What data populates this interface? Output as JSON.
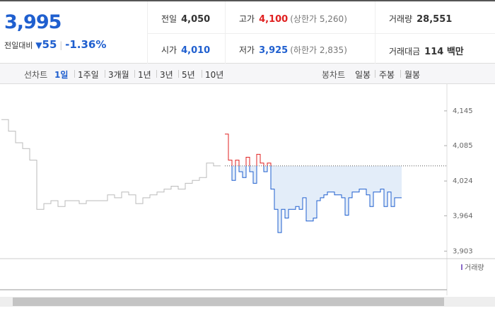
{
  "header": {
    "price": "3,995",
    "change_label": "전일대비",
    "change": "55",
    "change_pct": "-1.36%"
  },
  "stats": [
    {
      "label": "전일",
      "value": "4,050"
    },
    {
      "label": "고가",
      "value": "4,100",
      "extra": "(상한가 5,260)"
    },
    {
      "label": "거래량",
      "value": "28,551"
    },
    {
      "label": "시가",
      "value": "4,010"
    },
    {
      "label": "저가",
      "value": "3,925",
      "extra": "(하한가 2,835)"
    },
    {
      "label": "거래대금",
      "value": "114 백만"
    }
  ],
  "tabs": {
    "line_label": "선차트",
    "line_options": [
      "1일",
      "1주일",
      "3개월",
      "1년",
      "3년",
      "5년",
      "10년"
    ],
    "candle_label": "봉차트",
    "candle_options": [
      "일봉",
      "주봉",
      "월봉"
    ]
  },
  "chart": {
    "type": "line",
    "ylim": [
      3890,
      4190
    ],
    "yticks": [
      {
        "value": 4145,
        "label": "4,145"
      },
      {
        "value": 4085,
        "label": "4,085"
      },
      {
        "value": 4024,
        "label": "4,024"
      },
      {
        "value": 3964,
        "label": "3,964"
      },
      {
        "value": 3903,
        "label": "3,903"
      }
    ],
    "reference": 4050,
    "volume_legend": "거래량",
    "series": [
      {
        "color": "#bbbbbb",
        "values": [
          4130,
          4110,
          4090,
          4080,
          4060,
          3975,
          3985,
          3990,
          3980,
          3990,
          3990,
          3985,
          3990,
          3990,
          3990,
          4000,
          3995,
          4005,
          4000,
          3985,
          3995,
          4000,
          4005,
          4010,
          4015,
          4010,
          4020,
          4025,
          4030,
          4055,
          4050,
          4050
        ]
      },
      {
        "color": "#1f5fcf",
        "up_color": "#e02020",
        "values": [
          4105,
          4060,
          4025,
          4060,
          4040,
          4030,
          4065,
          4040,
          4020,
          4070,
          4055,
          4040,
          4055,
          4010,
          3975,
          3935,
          3975,
          3960,
          3975,
          3975,
          3980,
          3975,
          3995,
          3955,
          3955,
          3960,
          3990,
          3995,
          4000,
          4005,
          4005,
          4000,
          4000,
          3995,
          3965,
          3995,
          4005,
          4005,
          4010,
          4010,
          4000,
          3980,
          4005,
          4005,
          4010,
          3980,
          4005,
          3980,
          3995,
          3995,
          3995
        ]
      }
    ]
  }
}
